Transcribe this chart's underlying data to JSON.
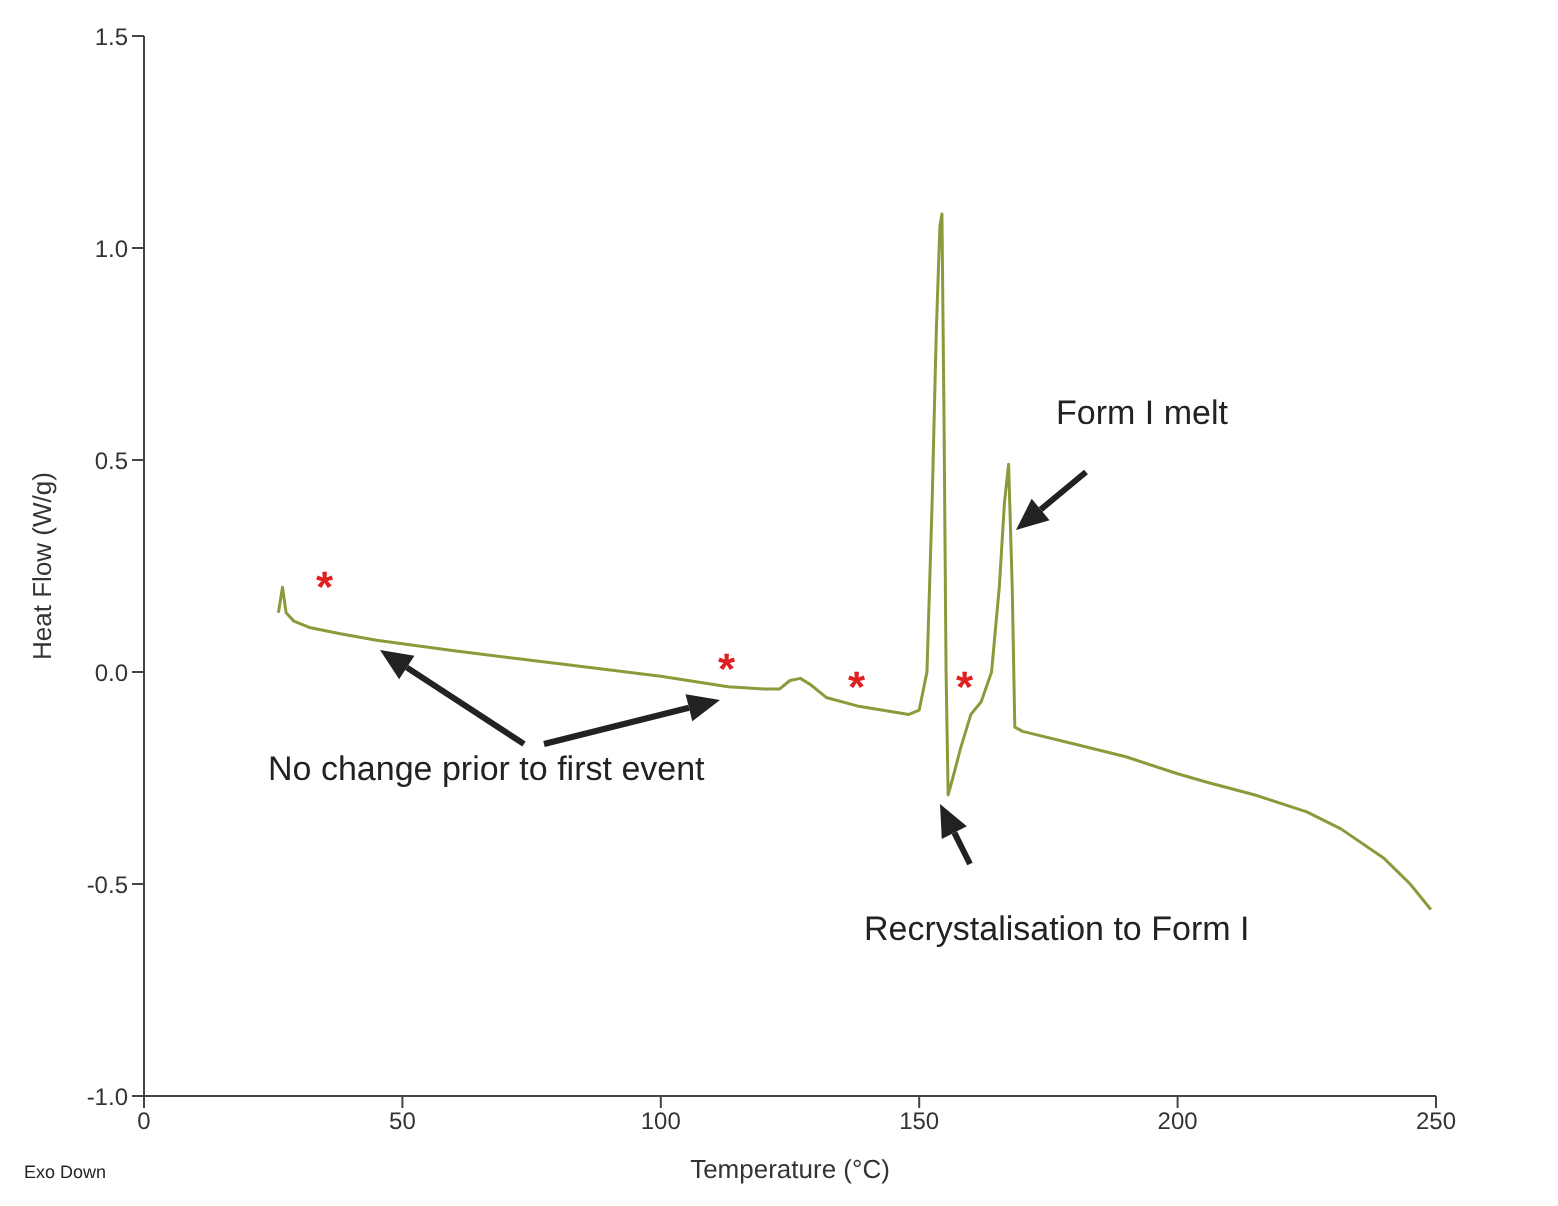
{
  "chart_data": {
    "type": "line",
    "xlabel": "Temperature (°C)",
    "ylabel": "Heat Flow (W/g)",
    "x": [
      26,
      26.8,
      27.5,
      29,
      32,
      38,
      45,
      60,
      80,
      100,
      113,
      120,
      123,
      125,
      127,
      129,
      132,
      138,
      143,
      148,
      150,
      151.5,
      152.5,
      153.3,
      154,
      154.4,
      154.8,
      155.2,
      155.6,
      156.5,
      158,
      160,
      162,
      164,
      165.5,
      166.5,
      167.3,
      168,
      168.5,
      170,
      180,
      190,
      200,
      205.7,
      215,
      225,
      231.6,
      240,
      245,
      249
    ],
    "series": [
      {
        "color": "#8c9a3c",
        "values": [
          0.14,
          0.2,
          0.14,
          0.12,
          0.105,
          0.09,
          0.075,
          0.05,
          0.02,
          -0.01,
          -0.035,
          -0.04,
          -0.04,
          -0.02,
          -0.015,
          -0.03,
          -0.06,
          -0.08,
          -0.09,
          -0.1,
          -0.09,
          0.0,
          0.4,
          0.8,
          1.05,
          1.08,
          0.6,
          0.0,
          -0.29,
          -0.25,
          -0.18,
          -0.1,
          -0.07,
          0.0,
          0.2,
          0.4,
          0.49,
          0.2,
          -0.13,
          -0.14,
          -0.17,
          -0.2,
          -0.24,
          -0.26,
          -0.29,
          -0.33,
          -0.37,
          -0.44,
          -0.5,
          -0.56
        ]
      }
    ],
    "xlim": [
      0,
      250
    ],
    "xticks": [
      0,
      50,
      100,
      150,
      200,
      250
    ],
    "ylim": [
      -1,
      1.5
    ],
    "yticks": [
      {
        "value": -1,
        "label": "-1.0"
      },
      -0.5,
      {
        "value": 0,
        "label": "0.0"
      },
      0.5,
      {
        "value": 1,
        "label": "1.0"
      },
      1.5
    ],
    "grid": false,
    "legend": false,
    "marker": "none",
    "line_style": "solid",
    "annotations": [
      "*",
      "*",
      "*",
      "*",
      "No change prior to first event",
      "Form I melt",
      "Recrystalisation to Form I",
      "Exo Down"
    ]
  }
}
